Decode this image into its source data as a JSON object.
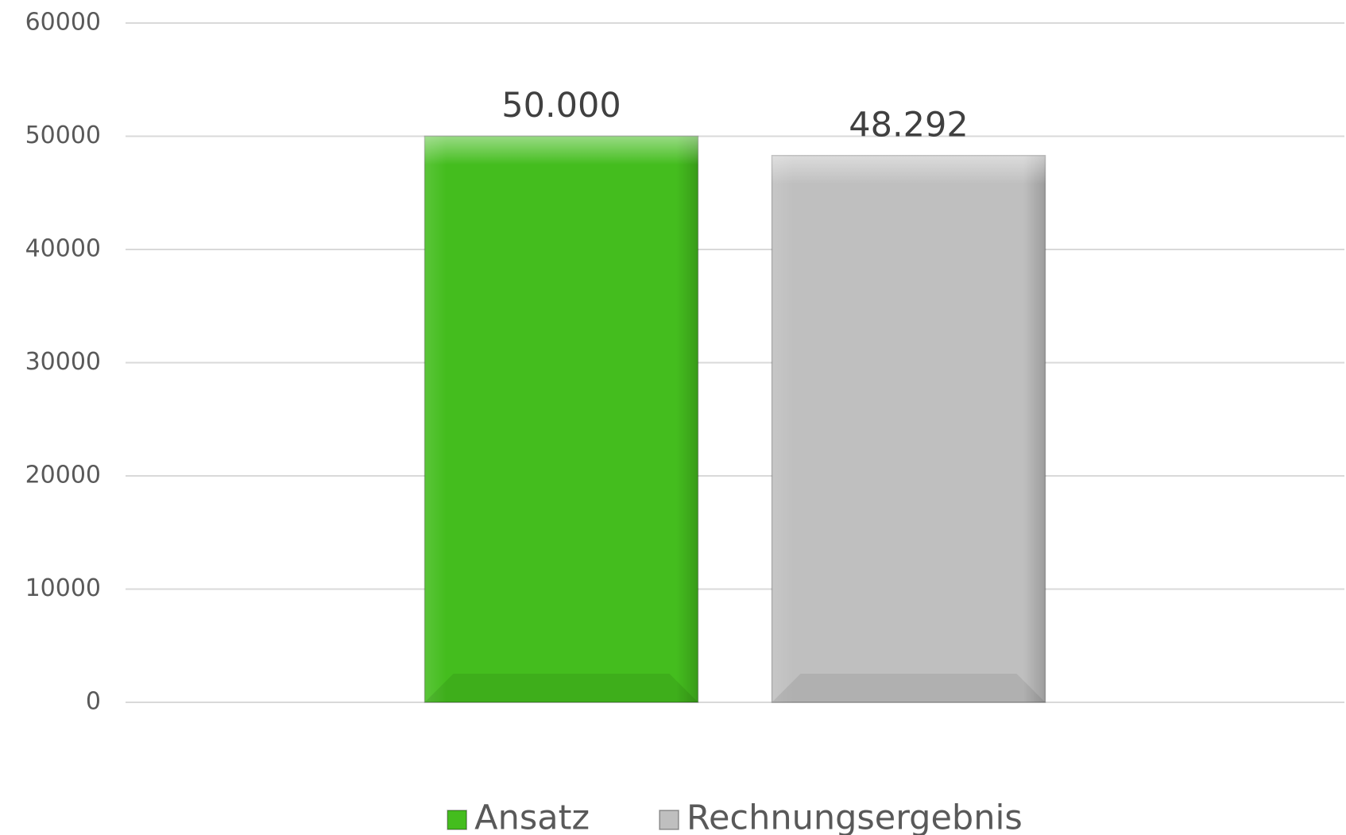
{
  "chart_data": {
    "type": "bar",
    "categories": [
      null
    ],
    "series": [
      {
        "name": "Ansatz",
        "color": "#44bd1e",
        "values": [
          50000
        ],
        "value_labels": [
          "50.000"
        ]
      },
      {
        "name": "Rechnungsergebnis",
        "color": "#bfbfbf",
        "values": [
          48292
        ],
        "value_labels": [
          "48.292"
        ]
      }
    ],
    "ylim": [
      0,
      60000
    ],
    "yticks": [
      0,
      10000,
      20000,
      30000,
      40000,
      50000,
      60000
    ],
    "grid": true,
    "legend": "bottom"
  }
}
